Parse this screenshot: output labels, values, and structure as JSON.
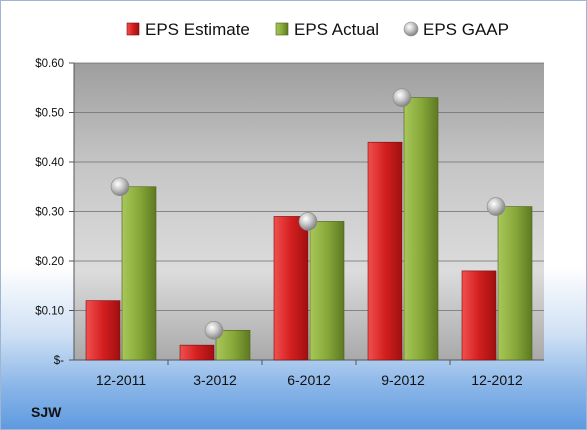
{
  "chart_data": {
    "type": "bar",
    "title": "",
    "xlabel": "",
    "ylabel": "",
    "ylim": [
      0,
      0.6
    ],
    "yticks": [
      {
        "value": 0.0,
        "label": "$-"
      },
      {
        "value": 0.1,
        "label": "$0.10"
      },
      {
        "value": 0.2,
        "label": "$0.20"
      },
      {
        "value": 0.3,
        "label": "$0.30"
      },
      {
        "value": 0.4,
        "label": "$0.40"
      },
      {
        "value": 0.5,
        "label": "$0.50"
      },
      {
        "value": 0.6,
        "label": "$0.60"
      }
    ],
    "grid": true,
    "legend_position": "top",
    "categories": [
      "12-2011",
      "3-2012",
      "6-2012",
      "9-2012",
      "12-2012"
    ],
    "series": [
      {
        "name": "EPS Estimate",
        "kind": "bar",
        "color": "#d42a2a",
        "values": [
          0.12,
          0.03,
          0.29,
          0.44,
          0.18
        ]
      },
      {
        "name": "EPS Actual",
        "kind": "bar",
        "color": "#8cae3a",
        "values": [
          0.35,
          0.06,
          0.28,
          0.53,
          0.31
        ]
      },
      {
        "name": "EPS GAAP",
        "kind": "marker",
        "color": "#b8b8b8",
        "values": [
          0.35,
          0.06,
          0.28,
          0.53,
          0.31
        ]
      }
    ]
  },
  "ticker": "SJW"
}
